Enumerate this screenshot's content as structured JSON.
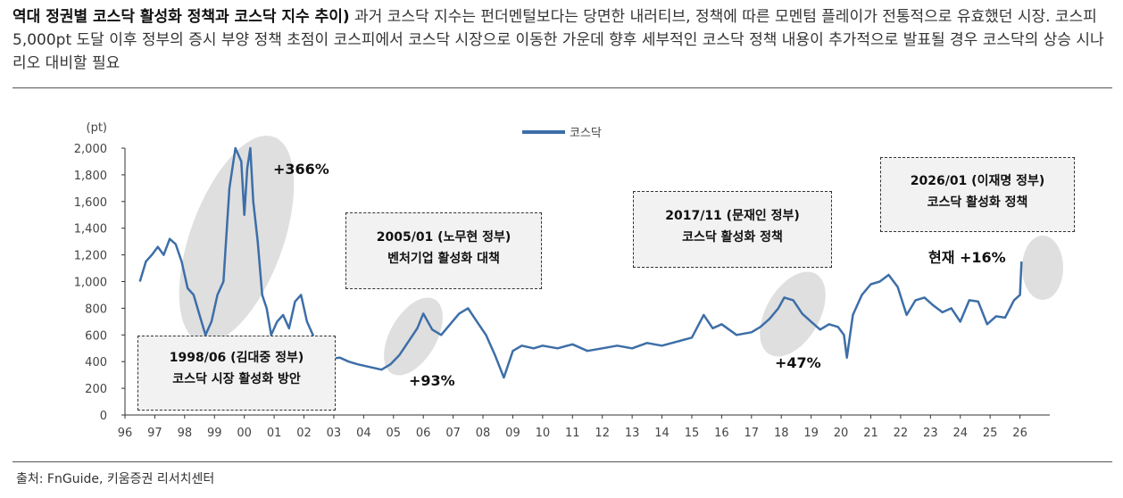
{
  "header": {
    "bold": "역대 정권별 코스닥 활성화 정책과 코스닥 지수 추이)",
    "text": " 과거 코스닥 지수는 펀더멘털보다는 당면한 내러티브, 정책에 따른 모멘텀 플레이가 전통적으로 유효했던 시장. 코스피 5,000pt 도달 이후 정부의 증시 부양 정책 초점이 코스피에서 코스닥 시장으로 이동한 가운데 향후 세부적인 코스닥 정책 내용이 추가적으로 발표될 경우 코스닥의 상승 시나리오 대비할 필요"
  },
  "source": "출처: FnGuide, 키움증권 리서치센터",
  "boxes": [
    {
      "line1": "1998/06 (김대중 정부)",
      "line2": "코스닥 시장 활성화 방안"
    },
    {
      "line1": "2005/01 (노무현 정부)",
      "line2": "벤처기업 활성화 대책"
    },
    {
      "line1": "2017/11 (문재인 정부)",
      "line2": "코스닥 활성화 정책"
    },
    {
      "line1": "2026/01 (이재명 정부)",
      "line2": "코스닥 활성화 정책"
    }
  ],
  "colors": {
    "line": "#3d6ea8",
    "highlight": "#d9d9d9"
  },
  "chart_data": {
    "type": "line",
    "title": "",
    "ylabel": "(pt)",
    "xlabel": "",
    "ylim": [
      0,
      2000
    ],
    "yticks": [
      "0",
      "200",
      "400",
      "600",
      "800",
      "1,000",
      "1,200",
      "1,400",
      "1,600",
      "1,800",
      "2,000"
    ],
    "xticks": [
      "96",
      "97",
      "98",
      "99",
      "00",
      "01",
      "02",
      "03",
      "04",
      "05",
      "06",
      "07",
      "08",
      "09",
      "10",
      "11",
      "12",
      "13",
      "14",
      "15",
      "16",
      "17",
      "18",
      "19",
      "20",
      "21",
      "22",
      "23",
      "24",
      "25",
      "26"
    ],
    "legend": "top-center",
    "annotations": [
      "+366%",
      "+93%",
      "+47%",
      "현재 +16%"
    ],
    "series": [
      {
        "name": "코스닥",
        "x": [
          96.5,
          96.7,
          96.9,
          97.1,
          97.3,
          97.5,
          97.7,
          97.9,
          98.1,
          98.3,
          98.5,
          98.7,
          98.9,
          99.1,
          99.3,
          99.5,
          99.7,
          99.9,
          100.0,
          100.1,
          100.2,
          100.3,
          100.45,
          100.6,
          100.75,
          100.9,
          101.1,
          101.3,
          101.5,
          101.7,
          101.9,
          102.1,
          102.3,
          102.5,
          102.7,
          102.9,
          103.2,
          103.5,
          103.8,
          104.2,
          104.6,
          104.9,
          105.2,
          105.5,
          105.8,
          106.0,
          106.3,
          106.6,
          106.9,
          107.2,
          107.5,
          107.8,
          108.1,
          108.4,
          108.7,
          109.0,
          109.3,
          109.7,
          110.0,
          110.5,
          111.0,
          111.5,
          112.0,
          112.5,
          113.0,
          113.5,
          114.0,
          114.5,
          115.0,
          115.4,
          115.7,
          116.0,
          116.5,
          117.0,
          117.3,
          117.6,
          117.9,
          118.1,
          118.4,
          118.7,
          119.0,
          119.3,
          119.6,
          119.9,
          120.1,
          120.2,
          120.4,
          120.7,
          121.0,
          121.3,
          121.6,
          121.9,
          122.2,
          122.5,
          122.8,
          123.1,
          123.4,
          123.7,
          124.0,
          124.3,
          124.6,
          124.9,
          125.2,
          125.5,
          125.8,
          126.0,
          126.05
        ],
        "values": [
          1000,
          1150,
          1200,
          1260,
          1200,
          1320,
          1280,
          1150,
          950,
          900,
          750,
          600,
          700,
          900,
          1000,
          1700,
          2000,
          1900,
          1500,
          1850,
          2000,
          1600,
          1300,
          900,
          800,
          600,
          700,
          750,
          650,
          850,
          900,
          700,
          600,
          500,
          450,
          420,
          430,
          400,
          380,
          360,
          340,
          380,
          450,
          550,
          650,
          760,
          640,
          600,
          680,
          760,
          800,
          700,
          600,
          450,
          280,
          480,
          520,
          500,
          520,
          500,
          530,
          480,
          500,
          520,
          500,
          540,
          520,
          550,
          580,
          750,
          650,
          680,
          600,
          620,
          660,
          720,
          800,
          880,
          860,
          760,
          700,
          640,
          680,
          660,
          600,
          430,
          750,
          900,
          980,
          1000,
          1050,
          960,
          750,
          860,
          880,
          820,
          770,
          800,
          700,
          860,
          850,
          680,
          740,
          730,
          860,
          900,
          1150
        ]
      }
    ]
  }
}
